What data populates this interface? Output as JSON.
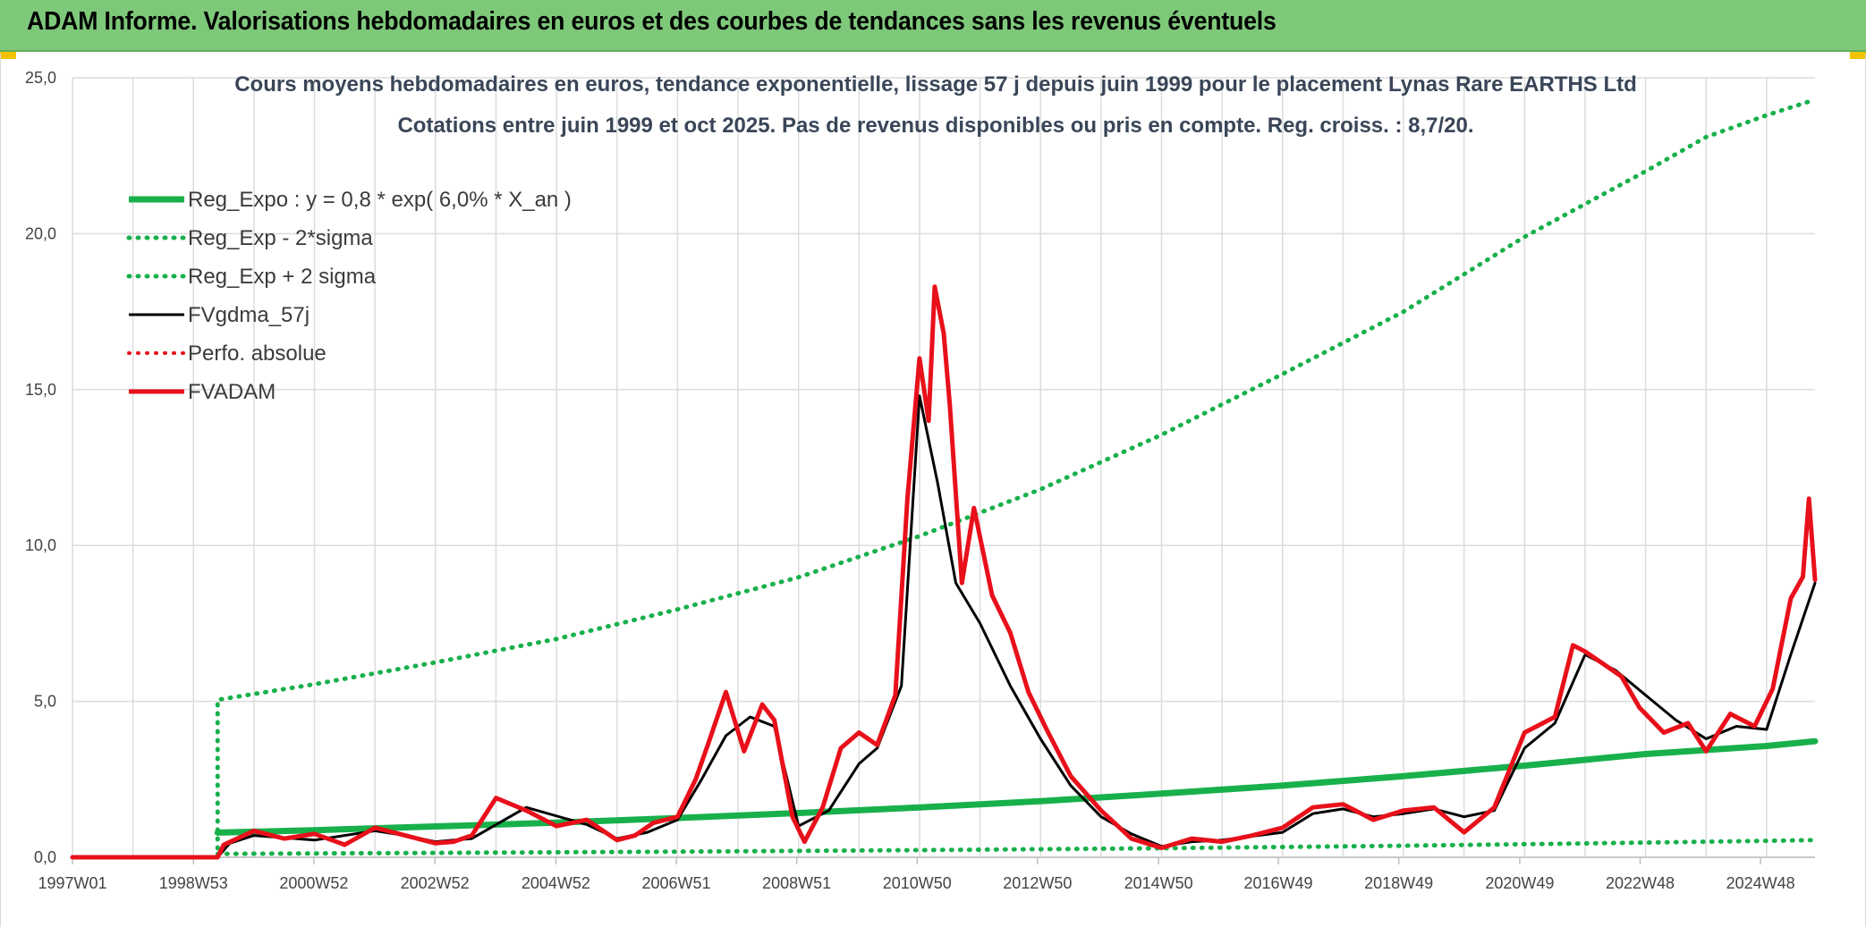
{
  "banner": {
    "title": "ADAM Informe. Valorisations hebdomadaires en euros et des courbes de tendances sans les revenus éventuels",
    "background": "#7ec87a",
    "accent": "#f2c100"
  },
  "chart_data": {
    "type": "line",
    "title": "Cours moyens hebdomadaires en euros, tendance exponentielle, lissage 57 j depuis juin 1999 pour le placement Lynas Rare EARTHS Ltd",
    "subtitle": "Cotations entre juin 1999 et oct 2025. Pas de revenus disponibles ou pris en compte. Reg. croiss. : 8,7/20.",
    "xlabel": "",
    "ylabel": "",
    "xlim": [
      1997.0,
      2025.8
    ],
    "ylim": [
      0,
      25
    ],
    "grid": true,
    "legend_position": "top-left",
    "x_ticks": [
      {
        "x": 1997.0,
        "label": "1997W01"
      },
      {
        "x": 1999.0,
        "label": "1998W53"
      },
      {
        "x": 2000.99,
        "label": "2000W52"
      },
      {
        "x": 2002.99,
        "label": "2002W52"
      },
      {
        "x": 2004.99,
        "label": "2004W52"
      },
      {
        "x": 2006.98,
        "label": "2006W51"
      },
      {
        "x": 2008.97,
        "label": "2008W51"
      },
      {
        "x": 2010.96,
        "label": "2010W50"
      },
      {
        "x": 2012.95,
        "label": "2012W50"
      },
      {
        "x": 2014.95,
        "label": "2014W50"
      },
      {
        "x": 2016.93,
        "label": "2016W49"
      },
      {
        "x": 2018.92,
        "label": "2018W49"
      },
      {
        "x": 2020.92,
        "label": "2020W49"
      },
      {
        "x": 2022.91,
        "label": "2022W48"
      },
      {
        "x": 2024.9,
        "label": "2024W48"
      }
    ],
    "y_ticks": [
      {
        "y": 0,
        "label": "0,0"
      },
      {
        "y": 5,
        "label": "5,0"
      },
      {
        "y": 10,
        "label": "10,0"
      },
      {
        "y": 15,
        "label": "15,0"
      },
      {
        "y": 20,
        "label": "20,0"
      },
      {
        "y": 25,
        "label": "25,0"
      }
    ],
    "x_grid": [
      1997.0,
      1998.0,
      1999.0,
      2000.0,
      2001.0,
      2002.0,
      2003.0,
      2004.0,
      2005.0,
      2006.0,
      2007.0,
      2008.0,
      2009.0,
      2010.0,
      2011.0,
      2012.0,
      2013.0,
      2014.0,
      2015.0,
      2016.0,
      2017.0,
      2018.0,
      2019.0,
      2020.0,
      2021.0,
      2022.0,
      2023.0,
      2024.0,
      2025.0
    ],
    "series": [
      {
        "name": "Reg_Expo : y = 0,8 * exp( 6,0% *  X_an )",
        "color": "#18b04b",
        "style": "solid",
        "width": 7,
        "x": [
          1999.4,
          2001,
          2003,
          2005,
          2007,
          2009,
          2011,
          2013,
          2015,
          2017,
          2019,
          2021,
          2023,
          2025,
          2025.8
        ],
        "y": [
          0.79,
          0.87,
          0.99,
          1.11,
          1.26,
          1.42,
          1.6,
          1.8,
          2.04,
          2.3,
          2.6,
          2.94,
          3.31,
          3.57,
          3.72
        ]
      },
      {
        "name": "Reg_Exp - 2*sigma",
        "color": "#18b04b",
        "style": "dotted",
        "width": 5,
        "x": [
          1999.4,
          2003,
          2007,
          2011,
          2015,
          2019,
          2023,
          2025.8
        ],
        "y": [
          0.11,
          0.14,
          0.18,
          0.23,
          0.29,
          0.37,
          0.47,
          0.55
        ]
      },
      {
        "name": "Reg_Exp + 2 sigma",
        "color": "#18b04b",
        "style": "dotted",
        "width": 5,
        "x": [
          1999.4,
          1999.4,
          2001,
          2003,
          2005,
          2007,
          2009,
          2011,
          2013,
          2015,
          2017,
          2019,
          2021,
          2023,
          2024,
          2025,
          2025.8
        ],
        "y": [
          0,
          5.05,
          5.55,
          6.25,
          7.0,
          7.95,
          8.98,
          10.3,
          11.8,
          13.55,
          15.5,
          17.5,
          19.9,
          22.0,
          23.1,
          23.8,
          24.3
        ]
      },
      {
        "name": "FVgdma_57j",
        "color": "#000000",
        "style": "solid",
        "width": 3,
        "x": [
          1997.0,
          1999.4,
          1999.6,
          2000.0,
          2001.0,
          2002.0,
          2002.5,
          2003.0,
          2003.6,
          2004.5,
          2005.5,
          2006.0,
          2006.5,
          2007.0,
          2007.4,
          2007.8,
          2008.2,
          2008.6,
          2009.0,
          2009.5,
          2010.0,
          2010.3,
          2010.7,
          2011.0,
          2011.3,
          2011.6,
          2012.0,
          2012.5,
          2013.0,
          2013.5,
          2014.0,
          2014.5,
          2015.0,
          2015.5,
          2016.0,
          2017.0,
          2017.5,
          2018.0,
          2018.5,
          2019.0,
          2019.5,
          2020.0,
          2020.5,
          2021.0,
          2021.5,
          2022.0,
          2022.5,
          2023.0,
          2023.5,
          2024.0,
          2024.5,
          2025.0,
          2025.4,
          2025.8
        ],
        "y": [
          0,
          0,
          0.45,
          0.7,
          0.55,
          0.85,
          0.7,
          0.5,
          0.6,
          1.6,
          1.05,
          0.6,
          0.8,
          1.2,
          2.5,
          3.9,
          4.5,
          4.2,
          1.0,
          1.5,
          3.0,
          3.5,
          5.5,
          14.8,
          12.0,
          8.8,
          7.5,
          5.5,
          3.8,
          2.3,
          1.3,
          0.75,
          0.35,
          0.5,
          0.55,
          0.8,
          1.4,
          1.55,
          1.3,
          1.4,
          1.55,
          1.3,
          1.5,
          3.5,
          4.3,
          6.5,
          6.0,
          5.2,
          4.4,
          3.8,
          4.2,
          4.1,
          6.5,
          8.8
        ]
      },
      {
        "name": "Perfo. absolue",
        "color": "#e8101a",
        "style": "dotted",
        "width": 4,
        "x": [],
        "y": []
      },
      {
        "name": "FVADAM",
        "color": "#e8101a",
        "style": "solid",
        "width": 5,
        "x": [
          1997.0,
          1999.4,
          1999.5,
          2000.0,
          2000.5,
          2001.0,
          2001.5,
          2002.0,
          2002.5,
          2003.0,
          2003.3,
          2003.6,
          2004.0,
          2004.5,
          2005.0,
          2005.5,
          2006.0,
          2006.3,
          2006.6,
          2007.0,
          2007.3,
          2007.5,
          2007.8,
          2008.1,
          2008.4,
          2008.6,
          2008.9,
          2009.1,
          2009.4,
          2009.7,
          2010.0,
          2010.3,
          2010.6,
          2010.8,
          2011.0,
          2011.15,
          2011.25,
          2011.4,
          2011.5,
          2011.7,
          2011.9,
          2012.2,
          2012.5,
          2012.8,
          2013.1,
          2013.5,
          2014.0,
          2014.5,
          2015.0,
          2015.5,
          2016.0,
          2016.5,
          2017.0,
          2017.5,
          2018.0,
          2018.5,
          2019.0,
          2019.5,
          2020.0,
          2020.5,
          2021.0,
          2021.5,
          2021.8,
          2022.0,
          2022.3,
          2022.6,
          2022.9,
          2023.3,
          2023.7,
          2024.0,
          2024.4,
          2024.8,
          2025.1,
          2025.4,
          2025.6,
          2025.7,
          2025.8
        ],
        "y": [
          0,
          0,
          0.4,
          0.85,
          0.6,
          0.75,
          0.4,
          0.95,
          0.7,
          0.45,
          0.5,
          0.7,
          1.9,
          1.5,
          1.0,
          1.2,
          0.55,
          0.7,
          1.1,
          1.3,
          2.5,
          3.6,
          5.3,
          3.4,
          4.9,
          4.4,
          1.3,
          0.5,
          1.6,
          3.5,
          4.0,
          3.6,
          5.2,
          11.5,
          16.0,
          14.0,
          18.3,
          16.8,
          14.5,
          8.8,
          11.2,
          8.4,
          7.2,
          5.3,
          4.1,
          2.6,
          1.5,
          0.6,
          0.3,
          0.6,
          0.5,
          0.7,
          0.95,
          1.6,
          1.7,
          1.2,
          1.5,
          1.6,
          0.8,
          1.6,
          4.0,
          4.5,
          6.8,
          6.6,
          6.2,
          5.8,
          4.8,
          4.0,
          4.3,
          3.4,
          4.6,
          4.2,
          5.4,
          8.3,
          9.0,
          11.5,
          8.9
        ]
      }
    ]
  }
}
